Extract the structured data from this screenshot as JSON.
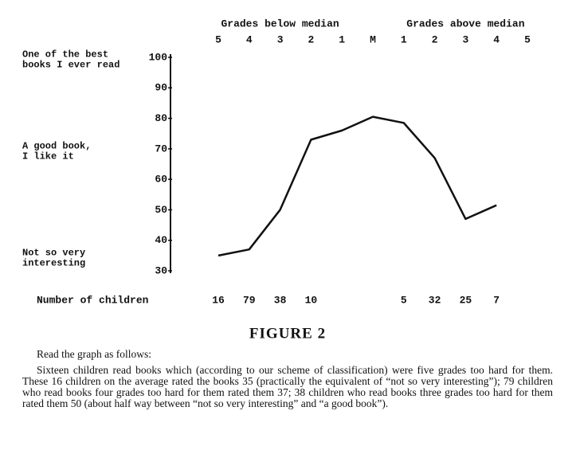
{
  "chart_data": {
    "type": "line",
    "group_labels": [
      "Grades below median",
      "Grades above median"
    ],
    "categories": [
      "5",
      "4",
      "3",
      "2",
      "1",
      "M",
      "1",
      "2",
      "3",
      "4",
      "5"
    ],
    "values": [
      35,
      37,
      50,
      73,
      76,
      80.5,
      78.5,
      67,
      47,
      51.5,
      null
    ],
    "color": "#111111",
    "ylim": [
      30,
      100
    ],
    "yticks": [
      30,
      40,
      50,
      60,
      70,
      80,
      90,
      100
    ],
    "y_annotations": [
      {
        "lines": [
          "One of the best",
          "books I ever read"
        ],
        "value": 100
      },
      {
        "lines": [
          "A good book,",
          "I like it"
        ],
        "value": 70
      },
      {
        "lines": [
          "Not so very",
          "interesting"
        ],
        "value": 35
      }
    ],
    "counts_label": "Number of children",
    "counts": [
      16,
      79,
      38,
      10,
      null,
      null,
      5,
      32,
      25,
      7,
      null
    ],
    "caption": "FIGURE 2"
  },
  "text": {
    "paragraphs": [
      "Read the graph as follows:",
      "Sixteen children read books which (according to our scheme of classification) were five grades too hard for them. These 16 children on the average rated the books 35 (practically the equivalent of “not so very interesting”); 79 children who read books four grades too hard for them rated them 37; 38 children who read books three grades too hard for them rated them 50 (about half way between “not so very interesting” and “a good book”)."
    ]
  }
}
